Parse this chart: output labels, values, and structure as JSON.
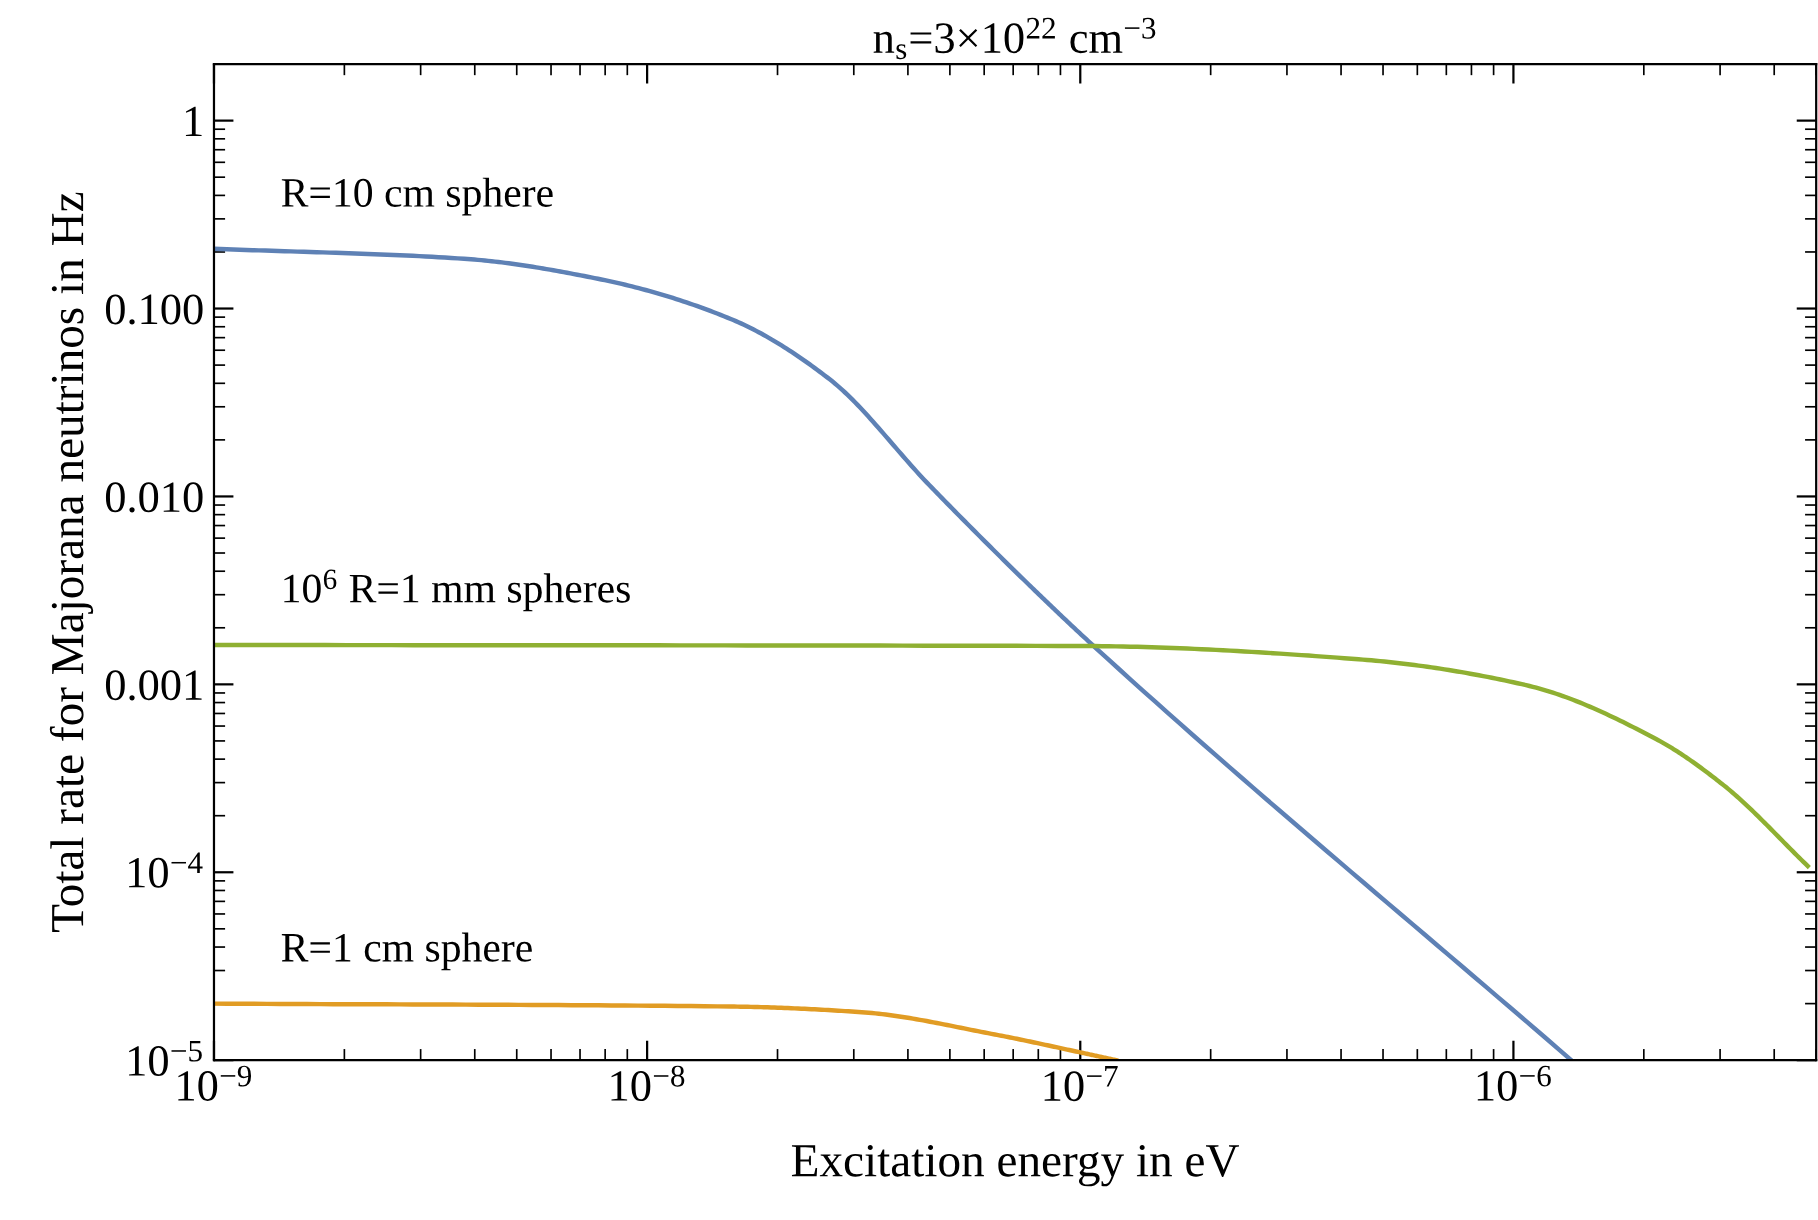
{
  "chart_data": {
    "type": "line",
    "title": "n$_{s}$=3×10$^{22}$ cm$^{−3}$",
    "xlabel": "Excitation energy in eV",
    "ylabel": "Total rate for Majorana neutrinos in Hz",
    "log": "xy",
    "xlim": [
      1e-09,
      5e-06
    ],
    "ylim": [
      1e-05,
      2
    ],
    "xticks": [
      {
        "value": 1e-09,
        "label": "10$^{−9}$"
      },
      {
        "value": 1e-08,
        "label": "10$^{−8}$"
      },
      {
        "value": 1e-07,
        "label": "10$^{−7}$"
      },
      {
        "value": 1e-06,
        "label": "10$^{−6}$"
      }
    ],
    "yticks": [
      {
        "value": 1e-05,
        "label": "10$^{−5}$"
      },
      {
        "value": 0.0001,
        "label": "10$^{−4}$"
      },
      {
        "value": 0.001,
        "label": "0.001"
      },
      {
        "value": 0.01,
        "label": "0.010"
      },
      {
        "value": 0.1,
        "label": "0.100"
      },
      {
        "value": 1,
        "label": "1"
      }
    ],
    "grid": false,
    "legend": false,
    "series": [
      {
        "name": "R=10 cm sphere",
        "color": "#5e81b5",
        "x": [
          1e-09,
          3.78e-09,
          7.7e-09,
          1.56e-08,
          2.64e-08,
          4.48e-08,
          7.6e-08,
          1.08e-07,
          1.36e-06
        ],
        "values": [
          0.208,
          0.184,
          0.144,
          0.088,
          0.042,
          0.0115,
          0.0034,
          0.00158,
          1e-05
        ]
      },
      {
        "name": "10$^{6}$ R=1 mm spheres",
        "color": "#8fb032",
        "x": [
          1e-09,
          1e-07,
          4.39e-07,
          1.07e-06,
          2.14e-06,
          3.06e-06,
          4.78e-06
        ],
        "values": [
          0.00162,
          0.0016,
          0.00136,
          0.00099,
          0.00051,
          0.00029,
          0.000108
        ]
      },
      {
        "name": "R=1 cm sphere",
        "color": "#e19c24",
        "x": [
          1e-09,
          1.56e-08,
          3.13e-08,
          6.35e-08,
          1e-07,
          1.21e-07
        ],
        "values": [
          2e-05,
          1.93e-05,
          1.8e-05,
          1.37e-05,
          1.1e-05,
          1e-05
        ]
      }
    ]
  }
}
